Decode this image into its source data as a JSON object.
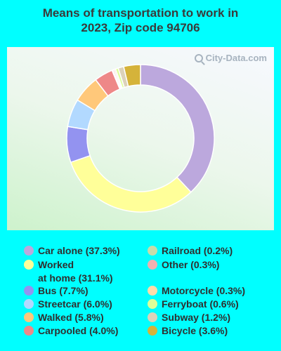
{
  "chart_data": {
    "type": "pie",
    "title_line1": "Means of transportation to work in",
    "title_line2": "2023, Zip code 94706",
    "watermark": "City-Data.com",
    "series": [
      {
        "label": "Car alone (37.3%)",
        "value": 37.3,
        "color": "#bca8dd"
      },
      {
        "label": "Worked\nat home (31.1%)",
        "value": 31.1,
        "color": "#ffff99"
      },
      {
        "label": "Bus (7.7%)",
        "value": 7.7,
        "color": "#9393f0"
      },
      {
        "label": "Streetcar (6.0%)",
        "value": 6.0,
        "color": "#b2d9ff"
      },
      {
        "label": "Walked (5.8%)",
        "value": 5.8,
        "color": "#ffc87a"
      },
      {
        "label": "Carpooled (4.0%)",
        "value": 4.0,
        "color": "#ee8888"
      },
      {
        "label": "Railroad (0.2%)",
        "value": 0.2,
        "color": "#c7dcaa"
      },
      {
        "label": "Other (0.3%)",
        "value": 0.3,
        "color": "#f0b0b0"
      },
      {
        "label": "Motorcycle (0.3%)",
        "value": 0.3,
        "color": "#ffdcaa"
      },
      {
        "label": "Ferryboat (0.6%)",
        "value": 0.6,
        "color": "#ddff99"
      },
      {
        "label": "Subway (1.2%)",
        "value": 1.2,
        "color": "#dcd2ba"
      },
      {
        "label": "Bicycle (3.6%)",
        "value": 3.6,
        "color": "#d5b33a"
      }
    ],
    "slice_order": [
      0,
      1,
      2,
      3,
      4,
      5,
      6,
      7,
      8,
      9,
      10,
      11
    ],
    "legend_columns": [
      [
        0,
        1,
        2,
        3,
        4,
        5
      ],
      [
        6,
        7,
        8,
        9,
        10,
        11
      ]
    ]
  }
}
